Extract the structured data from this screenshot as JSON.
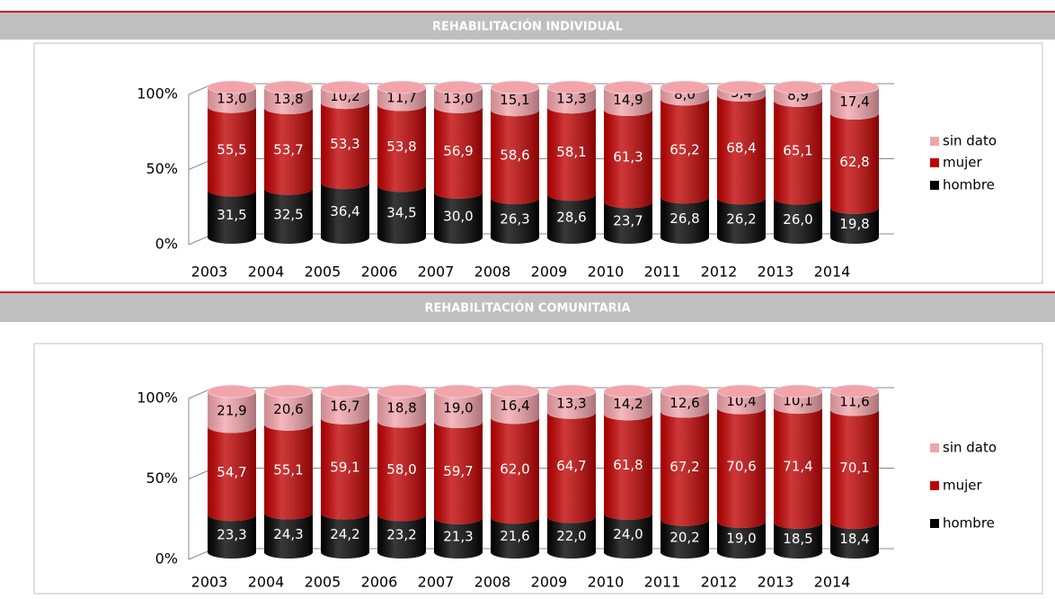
{
  "chart_data": [
    {
      "type": "bar",
      "stacked": true,
      "title": "REHABILITACIÓN INDIVIDUAL",
      "categories": [
        "2003",
        "2004",
        "2005",
        "2006",
        "2007",
        "2008",
        "2009",
        "2010",
        "2011",
        "2012",
        "2013",
        "2014"
      ],
      "series": [
        {
          "name": "hombre",
          "color": "#000000",
          "values": [
            31.5,
            32.5,
            36.4,
            34.5,
            30.0,
            26.3,
            28.6,
            23.7,
            26.8,
            26.2,
            26.0,
            19.8
          ],
          "value_labels": [
            "31,5",
            "32,5",
            "36,4",
            "34,5",
            "30,0",
            "26,3",
            "28,6",
            "23,7",
            "26,8",
            "26,2",
            "26,0",
            "19,8"
          ]
        },
        {
          "name": "mujer",
          "color": "#c00000",
          "values": [
            55.5,
            53.7,
            53.3,
            53.8,
            56.9,
            58.6,
            58.1,
            61.3,
            65.2,
            68.4,
            65.1,
            62.8
          ],
          "value_labels": [
            "55,5",
            "53,7",
            "53,3",
            "53,8",
            "56,9",
            "58,6",
            "58,1",
            "61,3",
            "65,2",
            "68,4",
            "65,1",
            "62,8"
          ]
        },
        {
          "name": "sin dato",
          "color": "#f2a4ab",
          "values": [
            13.0,
            13.8,
            10.2,
            11.7,
            13.0,
            15.1,
            13.3,
            14.9,
            8.0,
            5.4,
            8.9,
            17.4
          ],
          "value_labels": [
            "13,0",
            "13,8",
            "10,2",
            "11,7",
            "13,0",
            "15,1",
            "13,3",
            "14,9",
            "8,0",
            "5,4",
            "8,9",
            "17,4"
          ]
        }
      ],
      "ylim": [
        0,
        100
      ],
      "yticks": [
        {
          "value": 0,
          "label": "0%"
        },
        {
          "value": 50,
          "label": "50%"
        },
        {
          "value": 100,
          "label": "100%"
        }
      ],
      "grid": true,
      "legend": "right"
    },
    {
      "type": "bar",
      "stacked": true,
      "title": "REHABILITACIÓN COMUNITARIA",
      "categories": [
        "2003",
        "2004",
        "2005",
        "2006",
        "2007",
        "2008",
        "2009",
        "2010",
        "2011",
        "2012",
        "2013",
        "2014"
      ],
      "series": [
        {
          "name": "hombre",
          "color": "#000000",
          "values": [
            23.3,
            24.3,
            24.2,
            23.2,
            21.3,
            21.6,
            22.0,
            24.0,
            20.2,
            19.0,
            18.5,
            18.4
          ],
          "value_labels": [
            "23,3",
            "24,3",
            "24,2",
            "23,2",
            "21,3",
            "21,6",
            "22,0",
            "24,0",
            "20,2",
            "19,0",
            "18,5",
            "18,4"
          ]
        },
        {
          "name": "mujer",
          "color": "#c00000",
          "values": [
            54.7,
            55.1,
            59.1,
            58.0,
            59.7,
            62.0,
            64.7,
            61.8,
            67.2,
            70.6,
            71.4,
            70.1
          ],
          "value_labels": [
            "54,7",
            "55,1",
            "59,1",
            "58,0",
            "59,7",
            "62,0",
            "64,7",
            "61,8",
            "67,2",
            "70,6",
            "71,4",
            "70,1"
          ]
        },
        {
          "name": "sin dato",
          "color": "#f2a4ab",
          "values": [
            21.9,
            20.6,
            16.7,
            18.8,
            19.0,
            16.4,
            13.3,
            14.2,
            12.6,
            10.4,
            10.1,
            11.6
          ],
          "value_labels": [
            "21,9",
            "20,6",
            "16,7",
            "18,8",
            "19,0",
            "16,4",
            "13,3",
            "14,2",
            "12,6",
            "10,4",
            "10,1",
            "11,6"
          ]
        }
      ],
      "ylim": [
        0,
        100
      ],
      "yticks": [
        {
          "value": 0,
          "label": "0%"
        },
        {
          "value": 50,
          "label": "50%"
        },
        {
          "value": 100,
          "label": "100%"
        }
      ],
      "grid": true,
      "legend": "right"
    }
  ]
}
